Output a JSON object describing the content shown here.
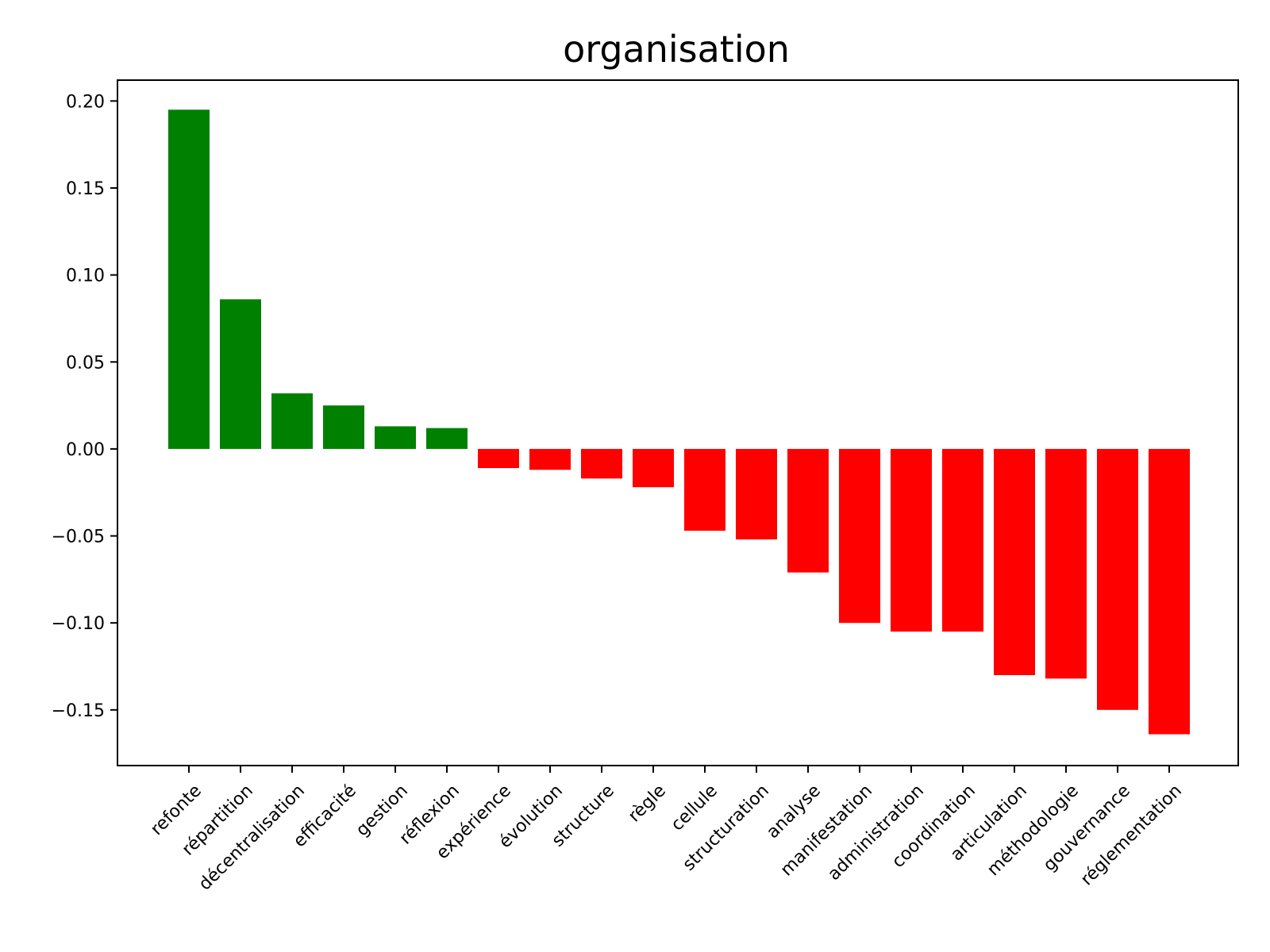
{
  "chart_data": {
    "type": "bar",
    "title": "organisation",
    "xlabel": "",
    "ylabel": "",
    "categories": [
      "refonte",
      "répartition",
      "décentralisation",
      "efficacité",
      "gestion",
      "réflexion",
      "expérience",
      "évolution",
      "structure",
      "règle",
      "cellule",
      "structuration",
      "analyse",
      "manifestation",
      "administration",
      "coordination",
      "articulation",
      "méthodologie",
      "gouvernance",
      "réglementation"
    ],
    "values": [
      0.195,
      0.086,
      0.032,
      0.025,
      0.013,
      0.012,
      -0.011,
      -0.012,
      -0.017,
      -0.022,
      -0.047,
      -0.052,
      -0.071,
      -0.1,
      -0.105,
      -0.105,
      -0.13,
      -0.132,
      -0.15,
      -0.164
    ],
    "ylim": [
      -0.182,
      0.212
    ],
    "yticks": [
      -0.15,
      -0.1,
      -0.05,
      0.0,
      0.05,
      0.1,
      0.15,
      0.2
    ],
    "ytick_labels": [
      "−0.15",
      "−0.10",
      "−0.05",
      "0.00",
      "0.05",
      "0.10",
      "0.15",
      "0.20"
    ],
    "positive_color": "#008000",
    "negative_color": "#ff0000",
    "grid": false,
    "legend": "none",
    "x_tick_rotation_deg": -45
  }
}
